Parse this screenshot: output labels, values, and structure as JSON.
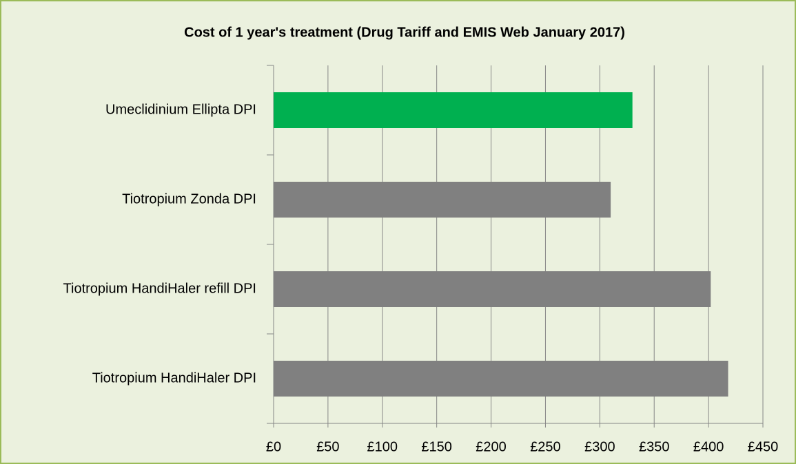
{
  "chart_data": {
    "type": "bar",
    "orientation": "horizontal",
    "title": "Cost of 1 year's treatment (Drug Tariff and EMIS Web January 2017)",
    "categories": [
      "Umeclidinium Ellipta DPI",
      "Tiotropium Zonda DPI",
      "Tiotropium HandiHaler refill DPI",
      "Tiotropium HandiHaler DPI"
    ],
    "values": [
      330,
      310,
      402,
      418
    ],
    "colors": [
      "#00b050",
      "#808080",
      "#808080",
      "#808080"
    ],
    "xlim": [
      0,
      450
    ],
    "xticks": [
      {
        "value": 0,
        "label": "£0"
      },
      {
        "value": 50,
        "label": "£50"
      },
      {
        "value": 100,
        "label": "£100"
      },
      {
        "value": 150,
        "label": "£150"
      },
      {
        "value": 200,
        "label": "£200"
      },
      {
        "value": 250,
        "label": "£250"
      },
      {
        "value": 300,
        "label": "£300"
      },
      {
        "value": 350,
        "label": "£350"
      },
      {
        "value": 400,
        "label": "£400"
      },
      {
        "value": 450,
        "label": "£450"
      }
    ],
    "grid": true
  }
}
